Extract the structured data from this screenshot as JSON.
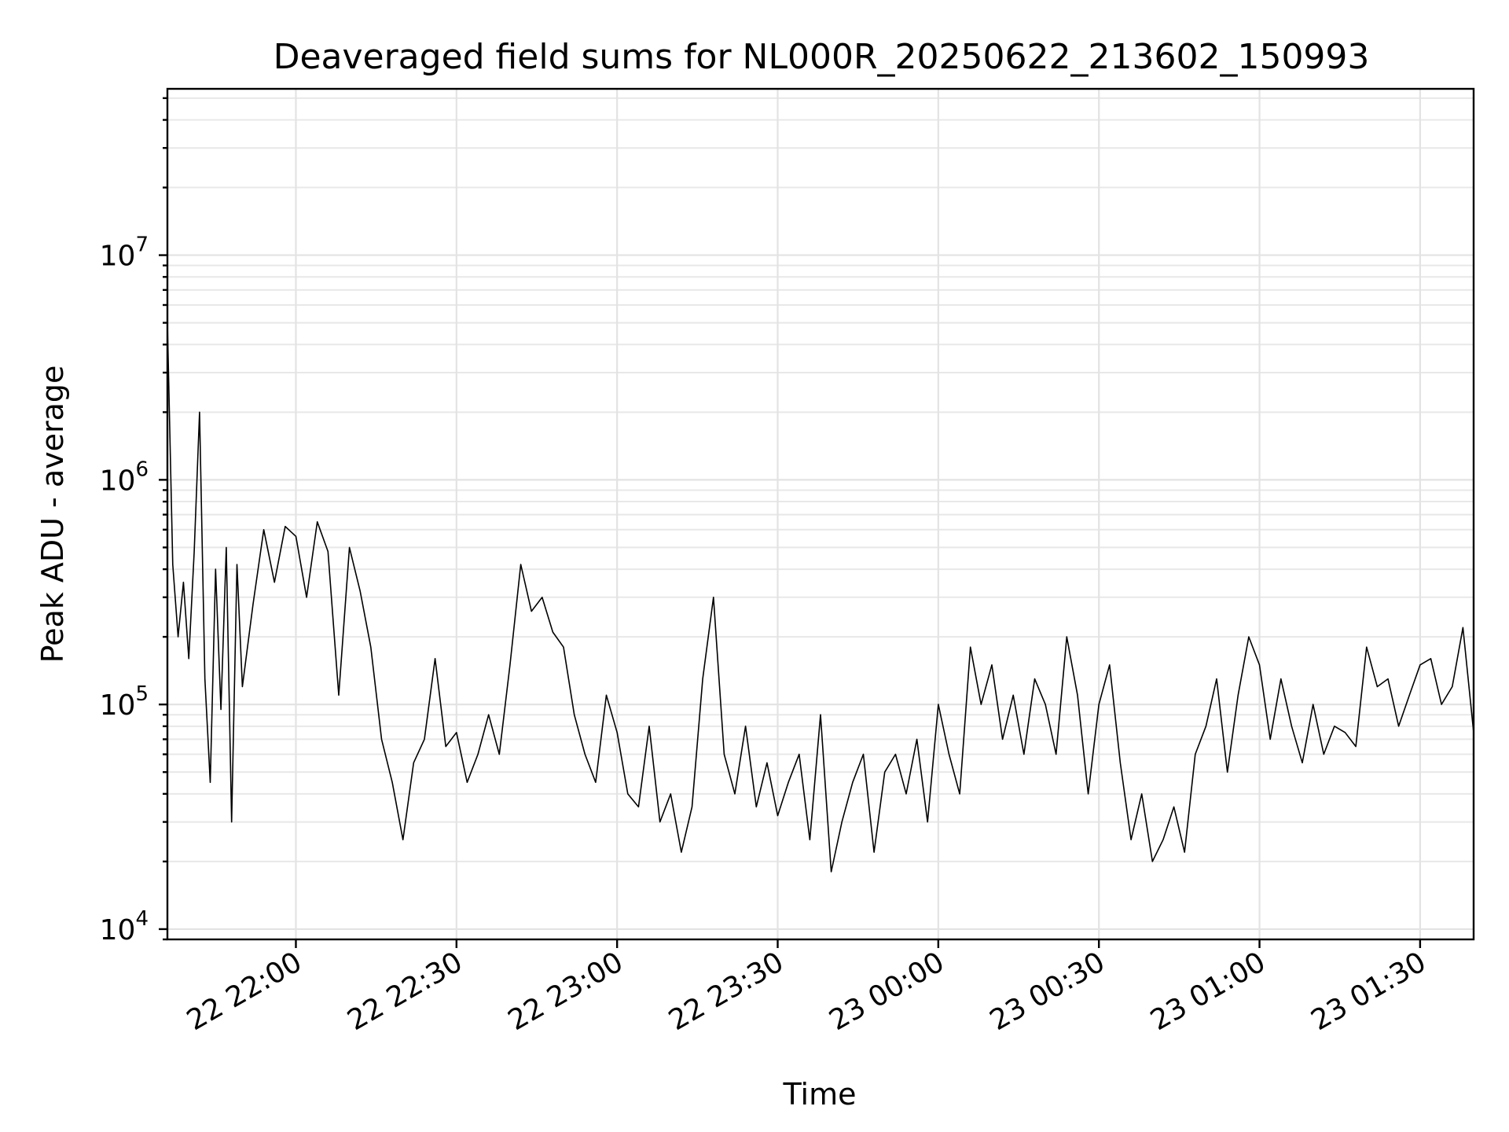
{
  "chart_data": {
    "type": "line",
    "title": "Deaveraged field sums for NL000R_20250622_213602_150993",
    "xlabel": "Time",
    "ylabel": "Peak ADU - average",
    "yscale": "log",
    "ylim": [
      9000,
      55000000
    ],
    "xlim": [
      "2025-06-22 21:36:00",
      "2025-06-23 01:40:00"
    ],
    "x_ticks": [
      "22 22:00",
      "22 22:30",
      "22 23:00",
      "22 23:30",
      "23 00:00",
      "23 00:30",
      "23 01:00",
      "23 01:30"
    ],
    "y_ticks": [
      {
        "value": 10000,
        "base": "10",
        "exp": "4"
      },
      {
        "value": 100000,
        "base": "10",
        "exp": "5"
      },
      {
        "value": 1000000,
        "base": "10",
        "exp": "6"
      },
      {
        "value": 10000000,
        "base": "10",
        "exp": "7"
      }
    ],
    "grid": true,
    "series": [
      {
        "color": "#000000",
        "x": [
          "2025-06-22 21:36",
          "2025-06-22 21:37",
          "2025-06-22 21:38",
          "2025-06-22 21:39",
          "2025-06-22 21:40",
          "2025-06-22 21:41",
          "2025-06-22 21:42",
          "2025-06-22 21:43",
          "2025-06-22 21:44",
          "2025-06-22 21:45",
          "2025-06-22 21:46",
          "2025-06-22 21:47",
          "2025-06-22 21:48",
          "2025-06-22 21:49",
          "2025-06-22 21:50",
          "2025-06-22 21:52",
          "2025-06-22 21:54",
          "2025-06-22 21:56",
          "2025-06-22 21:58",
          "2025-06-22 22:00",
          "2025-06-22 22:02",
          "2025-06-22 22:04",
          "2025-06-22 22:06",
          "2025-06-22 22:08",
          "2025-06-22 22:10",
          "2025-06-22 22:12",
          "2025-06-22 22:14",
          "2025-06-22 22:16",
          "2025-06-22 22:18",
          "2025-06-22 22:20",
          "2025-06-22 22:22",
          "2025-06-22 22:24",
          "2025-06-22 22:26",
          "2025-06-22 22:28",
          "2025-06-22 22:30",
          "2025-06-22 22:32",
          "2025-06-22 22:34",
          "2025-06-22 22:36",
          "2025-06-22 22:38",
          "2025-06-22 22:40",
          "2025-06-22 22:42",
          "2025-06-22 22:44",
          "2025-06-22 22:46",
          "2025-06-22 22:48",
          "2025-06-22 22:50",
          "2025-06-22 22:52",
          "2025-06-22 22:54",
          "2025-06-22 22:56",
          "2025-06-22 22:58",
          "2025-06-22 23:00",
          "2025-06-22 23:02",
          "2025-06-22 23:04",
          "2025-06-22 23:06",
          "2025-06-22 23:08",
          "2025-06-22 23:10",
          "2025-06-22 23:12",
          "2025-06-22 23:14",
          "2025-06-22 23:16",
          "2025-06-22 23:18",
          "2025-06-22 23:20",
          "2025-06-22 23:22",
          "2025-06-22 23:24",
          "2025-06-22 23:26",
          "2025-06-22 23:28",
          "2025-06-22 23:30",
          "2025-06-22 23:32",
          "2025-06-22 23:34",
          "2025-06-22 23:36",
          "2025-06-22 23:38",
          "2025-06-22 23:40",
          "2025-06-22 23:42",
          "2025-06-22 23:44",
          "2025-06-22 23:46",
          "2025-06-22 23:48",
          "2025-06-22 23:50",
          "2025-06-22 23:52",
          "2025-06-22 23:54",
          "2025-06-22 23:56",
          "2025-06-22 23:58",
          "2025-06-23 00:00",
          "2025-06-23 00:02",
          "2025-06-23 00:04",
          "2025-06-23 00:06",
          "2025-06-23 00:08",
          "2025-06-23 00:10",
          "2025-06-23 00:12",
          "2025-06-23 00:14",
          "2025-06-23 00:16",
          "2025-06-23 00:18",
          "2025-06-23 00:20",
          "2025-06-23 00:22",
          "2025-06-23 00:24",
          "2025-06-23 00:26",
          "2025-06-23 00:28",
          "2025-06-23 00:30",
          "2025-06-23 00:32",
          "2025-06-23 00:34",
          "2025-06-23 00:36",
          "2025-06-23 00:38",
          "2025-06-23 00:40",
          "2025-06-23 00:42",
          "2025-06-23 00:44",
          "2025-06-23 00:46",
          "2025-06-23 00:48",
          "2025-06-23 00:50",
          "2025-06-23 00:52",
          "2025-06-23 00:54",
          "2025-06-23 00:56",
          "2025-06-23 00:58",
          "2025-06-23 01:00",
          "2025-06-23 01:02",
          "2025-06-23 01:04",
          "2025-06-23 01:06",
          "2025-06-23 01:08",
          "2025-06-23 01:10",
          "2025-06-23 01:12",
          "2025-06-23 01:14",
          "2025-06-23 01:16",
          "2025-06-23 01:18",
          "2025-06-23 01:20",
          "2025-06-23 01:22",
          "2025-06-23 01:24",
          "2025-06-23 01:26",
          "2025-06-23 01:28",
          "2025-06-23 01:30",
          "2025-06-23 01:32",
          "2025-06-23 01:34",
          "2025-06-23 01:36",
          "2025-06-23 01:38",
          "2025-06-23 01:40"
        ],
        "y": [
          5000000,
          420000,
          200000,
          350000,
          160000,
          480000,
          2000000,
          130000,
          45000,
          400000,
          95000,
          500000,
          30000,
          420000,
          120000,
          280000,
          600000,
          350000,
          620000,
          560000,
          300000,
          650000,
          480000,
          110000,
          500000,
          320000,
          180000,
          70000,
          45000,
          25000,
          55000,
          70000,
          160000,
          65000,
          75000,
          45000,
          60000,
          90000,
          60000,
          150000,
          420000,
          260000,
          300000,
          210000,
          180000,
          90000,
          60000,
          45000,
          110000,
          75000,
          40000,
          35000,
          80000,
          30000,
          40000,
          22000,
          35000,
          130000,
          300000,
          60000,
          40000,
          80000,
          35000,
          55000,
          32000,
          45000,
          60000,
          25000,
          90000,
          18000,
          30000,
          45000,
          60000,
          22000,
          50000,
          60000,
          40000,
          70000,
          30000,
          100000,
          60000,
          40000,
          180000,
          100000,
          150000,
          70000,
          110000,
          60000,
          130000,
          100000,
          60000,
          200000,
          110000,
          40000,
          100000,
          150000,
          55000,
          25000,
          40000,
          20000,
          25000,
          35000,
          22000,
          60000,
          80000,
          130000,
          50000,
          110000,
          200000,
          150000,
          70000,
          130000,
          80000,
          55000,
          100000,
          60000,
          80000,
          75000,
          65000,
          180000,
          120000,
          130000,
          80000,
          110000,
          150000,
          160000,
          100000,
          120000,
          220000,
          75000
        ]
      }
    ]
  }
}
